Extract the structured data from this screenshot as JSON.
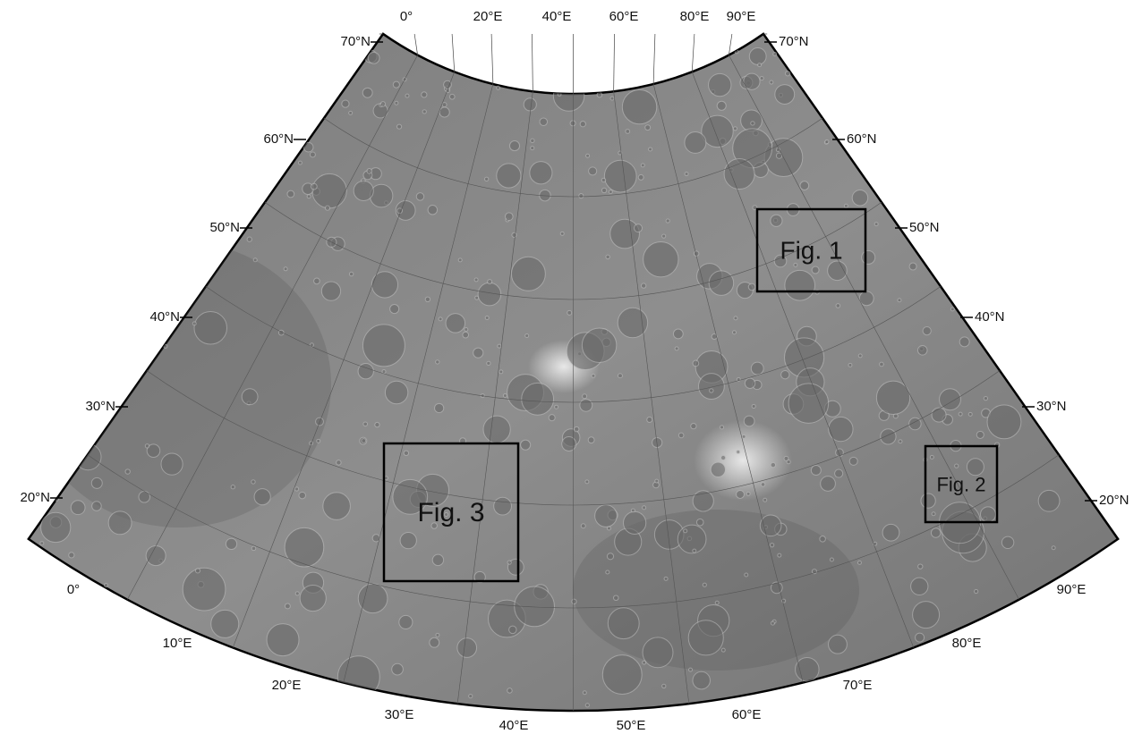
{
  "map": {
    "lat_labels_left": [
      "70°N",
      "60°N",
      "50°N",
      "40°N",
      "30°N",
      "20°N"
    ],
    "lat_labels_right": [
      "70°N",
      "60°N",
      "50°N",
      "40°N",
      "30°N",
      "20°N"
    ],
    "lon_labels_top": [
      "0°",
      "20°E",
      "40°E",
      "60°E",
      "80°E",
      "90°E"
    ],
    "lon_labels_bottom": [
      "0°",
      "10°E",
      "20°E",
      "30°E",
      "40°E",
      "50°E",
      "60°E",
      "70°E",
      "80°E",
      "90°E"
    ],
    "figure_boxes": [
      "Fig. 1",
      "Fig. 2",
      "Fig. 3"
    ]
  }
}
